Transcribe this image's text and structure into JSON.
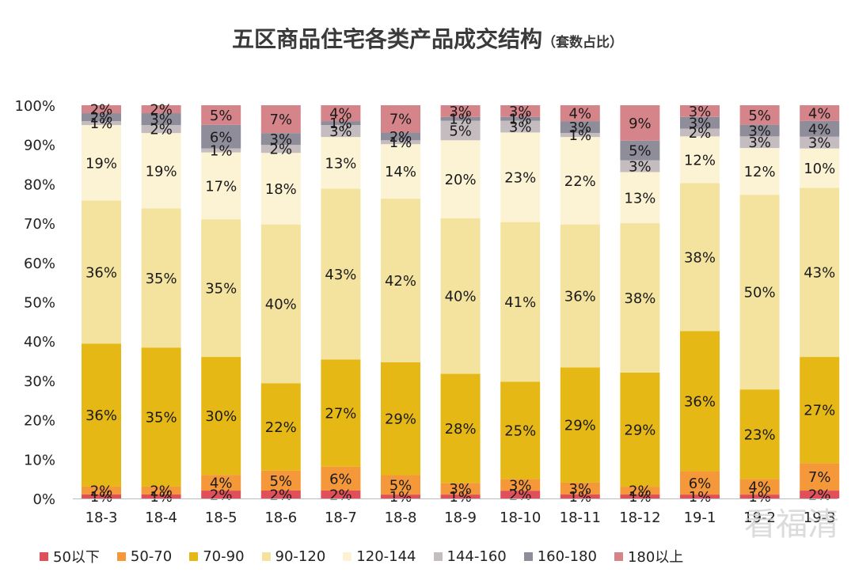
{
  "title": "五区商品住宅各类产品成交结构",
  "subtitle": "（套数占比）",
  "chart_data": {
    "type": "bar",
    "stacked": true,
    "categories": [
      "18-3",
      "18-4",
      "18-5",
      "18-6",
      "18-7",
      "18-8",
      "18-9",
      "18-10",
      "18-11",
      "18-12",
      "19-1",
      "19-2",
      "19-3"
    ],
    "ylim": [
      0,
      100
    ],
    "yticks": [
      "0%",
      "10%",
      "20%",
      "30%",
      "40%",
      "50%",
      "60%",
      "70%",
      "80%",
      "90%",
      "100%"
    ],
    "grid": false,
    "legend_position": "bottom",
    "series": [
      {
        "name": "50以下",
        "color": "#e0505a",
        "values": [
          1,
          1,
          2,
          2,
          2,
          1,
          1,
          2,
          1,
          1,
          1,
          1,
          2
        ]
      },
      {
        "name": "50-70",
        "color": "#f5983a",
        "values": [
          2,
          2,
          4,
          5,
          6,
          5,
          3,
          3,
          3,
          2,
          6,
          4,
          7
        ]
      },
      {
        "name": "70-90",
        "color": "#e6b816",
        "values": [
          36,
          35,
          30,
          22,
          27,
          29,
          28,
          25,
          29,
          29,
          36,
          23,
          27
        ]
      },
      {
        "name": "90-120",
        "color": "#f4e39e",
        "values": [
          36,
          35,
          35,
          40,
          43,
          42,
          40,
          41,
          36,
          38,
          38,
          50,
          43
        ]
      },
      {
        "name": "120-144",
        "color": "#fcf3d4",
        "values": [
          19,
          19,
          17,
          18,
          13,
          14,
          20,
          23,
          22,
          13,
          12,
          12,
          10
        ]
      },
      {
        "name": "144-160",
        "color": "#c4bcbe",
        "values": [
          1,
          2,
          1,
          2,
          3,
          1,
          5,
          3,
          1,
          3,
          2,
          3,
          3
        ]
      },
      {
        "name": "160-180",
        "color": "#8f8d9a",
        "values": [
          2,
          3,
          6,
          3,
          1,
          2,
          1,
          1,
          3,
          5,
          3,
          3,
          4
        ]
      },
      {
        "name": "180以上",
        "color": "#d5858a",
        "values": [
          2,
          2,
          5,
          7,
          4,
          7,
          3,
          3,
          4,
          9,
          3,
          5,
          4
        ]
      }
    ],
    "data_label_suffix": "%"
  },
  "watermark": "看福清"
}
